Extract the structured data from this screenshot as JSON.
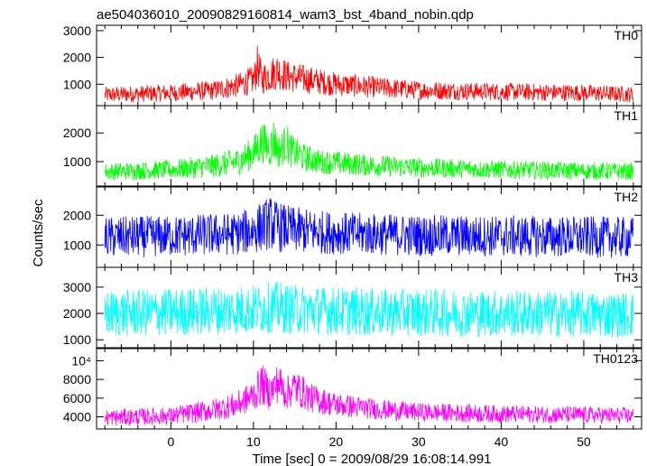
{
  "chart_data": {
    "type": "line",
    "title": "ae504036010_20090829160814_wam3_bst_4band_nobin.qdp",
    "xlabel": "Time [sec] 0 = 2009/08/29 16:08:14.991",
    "ylabel": "Counts/sec",
    "xlim": [
      -9,
      57
    ],
    "xticks": [
      0,
      10,
      20,
      30,
      40,
      50
    ],
    "data_range": [
      -8,
      56
    ],
    "grid": false,
    "panels": [
      {
        "name": "TH0",
        "color": "#ff0000",
        "ylim": [
          200,
          3200
        ],
        "yticks": [
          1000,
          2000,
          3000
        ],
        "ytick_labels": [
          "1000",
          "2000",
          "3000"
        ],
        "profile": {
          "t": [
            -8,
            0,
            5,
            8,
            10,
            10.5,
            11,
            12,
            13,
            14,
            15,
            17,
            20,
            25,
            30,
            40,
            50,
            56
          ],
          "mean": [
            600,
            680,
            760,
            950,
            1150,
            1700,
            1200,
            1350,
            1500,
            1300,
            1250,
            1150,
            1000,
            880,
            780,
            720,
            680,
            620
          ],
          "spread": [
            300,
            330,
            360,
            450,
            550,
            800,
            600,
            650,
            700,
            600,
            580,
            520,
            450,
            400,
            350,
            330,
            320,
            300
          ]
        }
      },
      {
        "name": "TH1",
        "color": "#00ff00",
        "ylim": [
          150,
          2950
        ],
        "yticks": [
          1000,
          2000
        ],
        "ytick_labels": [
          "1000",
          "2000"
        ],
        "profile": {
          "t": [
            -8,
            0,
            5,
            8,
            10,
            11,
            12,
            12.5,
            13,
            14,
            14.5,
            16,
            18,
            20,
            25,
            30,
            40,
            50,
            56
          ],
          "mean": [
            650,
            720,
            850,
            1000,
            1300,
            1700,
            1450,
            1800,
            1350,
            1650,
            1400,
            1150,
            1000,
            950,
            860,
            790,
            720,
            680,
            650
          ],
          "spread": [
            300,
            330,
            420,
            480,
            600,
            750,
            650,
            800,
            600,
            700,
            600,
            500,
            430,
            420,
            380,
            350,
            320,
            310,
            300
          ]
        }
      },
      {
        "name": "TH2",
        "color": "#0000ff",
        "ylim": [
          250,
          2950
        ],
        "yticks": [
          1000,
          2000
        ],
        "ytick_labels": [
          "1000",
          "2000"
        ],
        "profile": {
          "t": [
            -8,
            0,
            8,
            10,
            12,
            13,
            15,
            20,
            30,
            40,
            56
          ],
          "mean": [
            1250,
            1300,
            1380,
            1500,
            1750,
            1600,
            1500,
            1400,
            1320,
            1300,
            1250
          ],
          "spread": [
            700,
            700,
            720,
            800,
            900,
            850,
            780,
            720,
            700,
            700,
            700
          ]
        }
      },
      {
        "name": "TH3",
        "color": "#00ffff",
        "ylim": [
          700,
          3750
        ],
        "yticks": [
          1000,
          2000,
          3000
        ],
        "ytick_labels": [
          "1000",
          "2000",
          "3000"
        ],
        "profile": {
          "t": [
            -8,
            0,
            10,
            12,
            15,
            25,
            40,
            56
          ],
          "mean": [
            2000,
            2050,
            2150,
            2250,
            2150,
            2050,
            2000,
            1950
          ],
          "spread": [
            900,
            920,
            950,
            1000,
            950,
            920,
            900,
            880
          ]
        }
      },
      {
        "name": "TH0123",
        "color": "#ff00ff",
        "ylim": [
          2700,
          11300
        ],
        "yticks": [
          4000,
          6000,
          8000,
          10000
        ],
        "ytick_labels": [
          "4000",
          "6000",
          "8000",
          "10⁴"
        ],
        "profile": {
          "t": [
            -8,
            0,
            5,
            8,
            10,
            11,
            12,
            13,
            14,
            15,
            17,
            20,
            25,
            30,
            40,
            50,
            56
          ],
          "mean": [
            3900,
            4100,
            4700,
            5300,
            6300,
            7500,
            6600,
            7700,
            6500,
            7200,
            6000,
            5300,
            4800,
            4500,
            4300,
            4200,
            4100
          ],
          "spread": [
            900,
            950,
            1200,
            1400,
            1700,
            2300,
            1800,
            2200,
            1800,
            2000,
            1600,
            1300,
            1100,
            1000,
            950,
            920,
            900
          ]
        }
      }
    ]
  }
}
